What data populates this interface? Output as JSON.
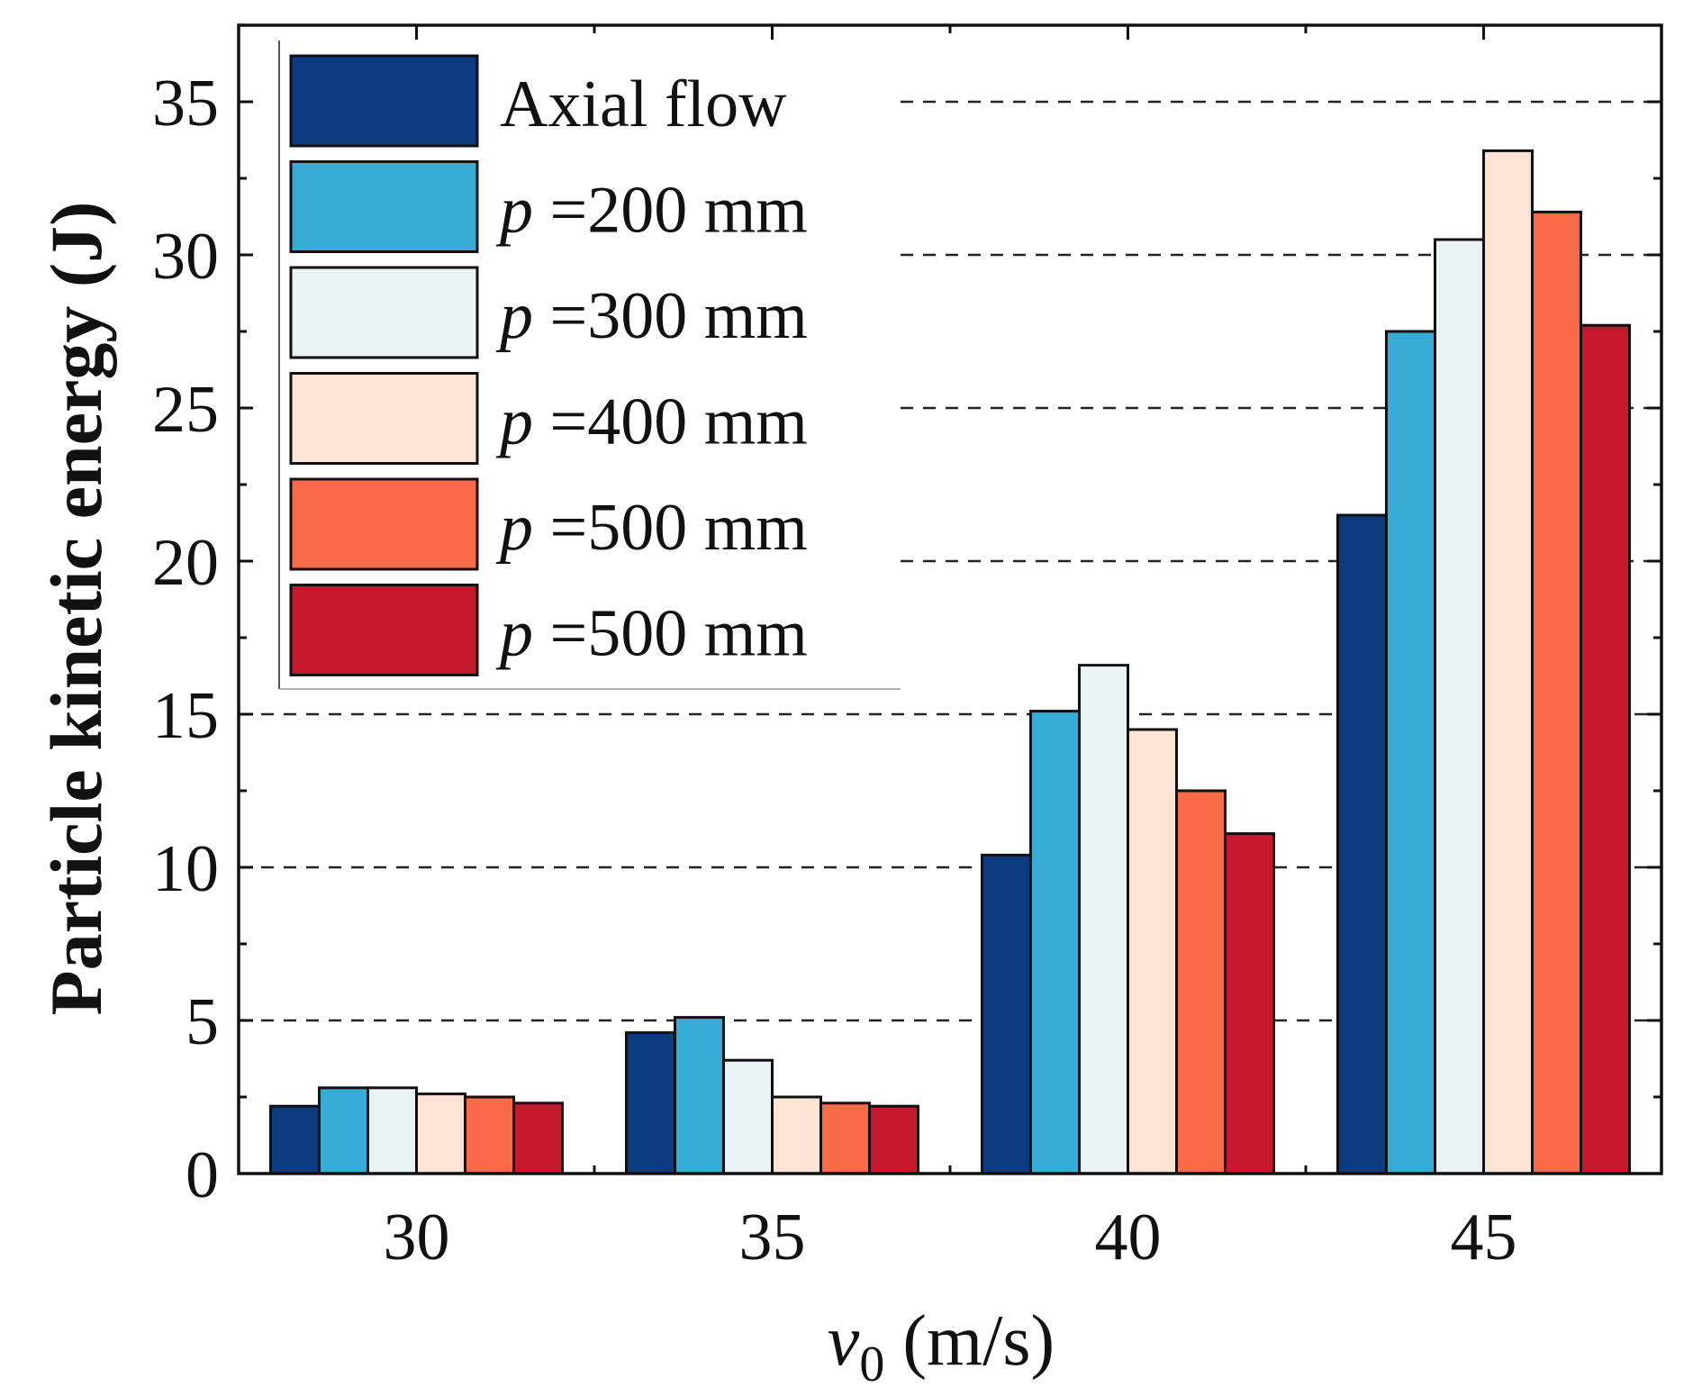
{
  "chart_data": {
    "type": "bar",
    "title": "",
    "xlabel_var": "v",
    "xlabel_sub": "0",
    "xlabel_unit": " (m/s)",
    "ylabel": "Particle kinetic energy (J)",
    "ylim": [
      0,
      37.5
    ],
    "yticks": [
      "0",
      "5",
      "10",
      "15",
      "20",
      "25",
      "30",
      "35"
    ],
    "categories": [
      "30",
      "35",
      "40",
      "45"
    ],
    "grid": "horizontal dashed at major ticks",
    "legend_position": "top-left",
    "series": [
      {
        "name": "Axial flow",
        "prefix": "",
        "label": "Axial flow",
        "color": "#0d3b80",
        "values": [
          2.2,
          4.6,
          10.4,
          21.5
        ]
      },
      {
        "name": "p =200 mm",
        "prefix": "p",
        "label": " =200 mm",
        "color": "#36abd6",
        "values": [
          2.8,
          5.1,
          15.1,
          27.5
        ]
      },
      {
        "name": "p =300 mm",
        "prefix": "p",
        "label": " =300 mm",
        "color": "#eaf3f4",
        "values": [
          2.8,
          3.7,
          16.6,
          30.5
        ]
      },
      {
        "name": "p =400 mm",
        "prefix": "p",
        "label": " =400 mm",
        "color": "#fde4d5",
        "values": [
          2.6,
          2.5,
          14.5,
          33.4
        ]
      },
      {
        "name": "p =500 mm",
        "prefix": "p",
        "label": " =500 mm",
        "color": "#f86a48",
        "values": [
          2.5,
          2.3,
          12.5,
          31.4
        ]
      },
      {
        "name": "p =500 mm",
        "prefix": "p",
        "label": " =500 mm",
        "color": "#c5182c",
        "values": [
          2.3,
          2.2,
          11.1,
          27.7
        ]
      }
    ]
  }
}
